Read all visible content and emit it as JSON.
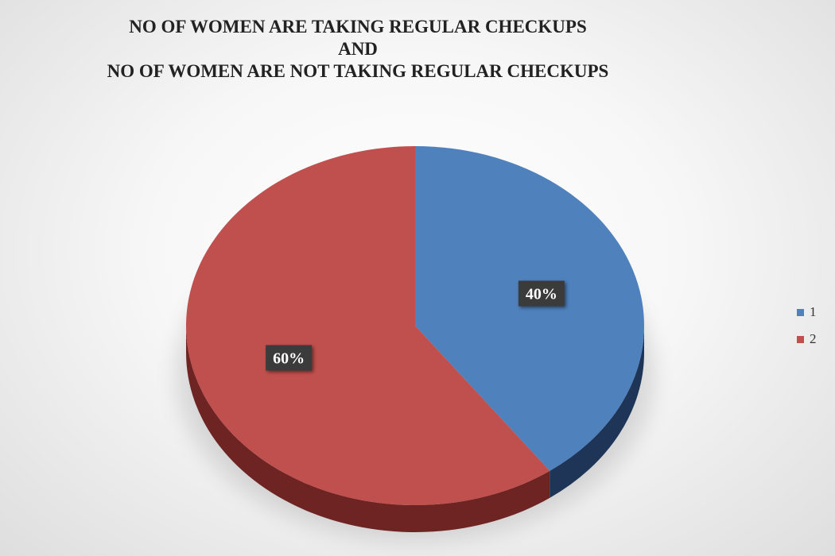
{
  "chart_data": {
    "type": "pie",
    "title_lines": [
      "NO OF WOMEN ARE TAKING REGULAR CHECKUPS",
      "AND",
      "NO OF WOMEN ARE NOT TAKING REGULAR CHECKUPS"
    ],
    "slices": [
      {
        "label": "1",
        "value": 40,
        "data_label": "40%",
        "color": "#4F81BD",
        "side_color": "#1F3558"
      },
      {
        "label": "2",
        "value": 60,
        "data_label": "60%",
        "color": "#C0504D",
        "side_color": "#6E2423"
      }
    ],
    "legend_position": "right",
    "style": "3d"
  }
}
